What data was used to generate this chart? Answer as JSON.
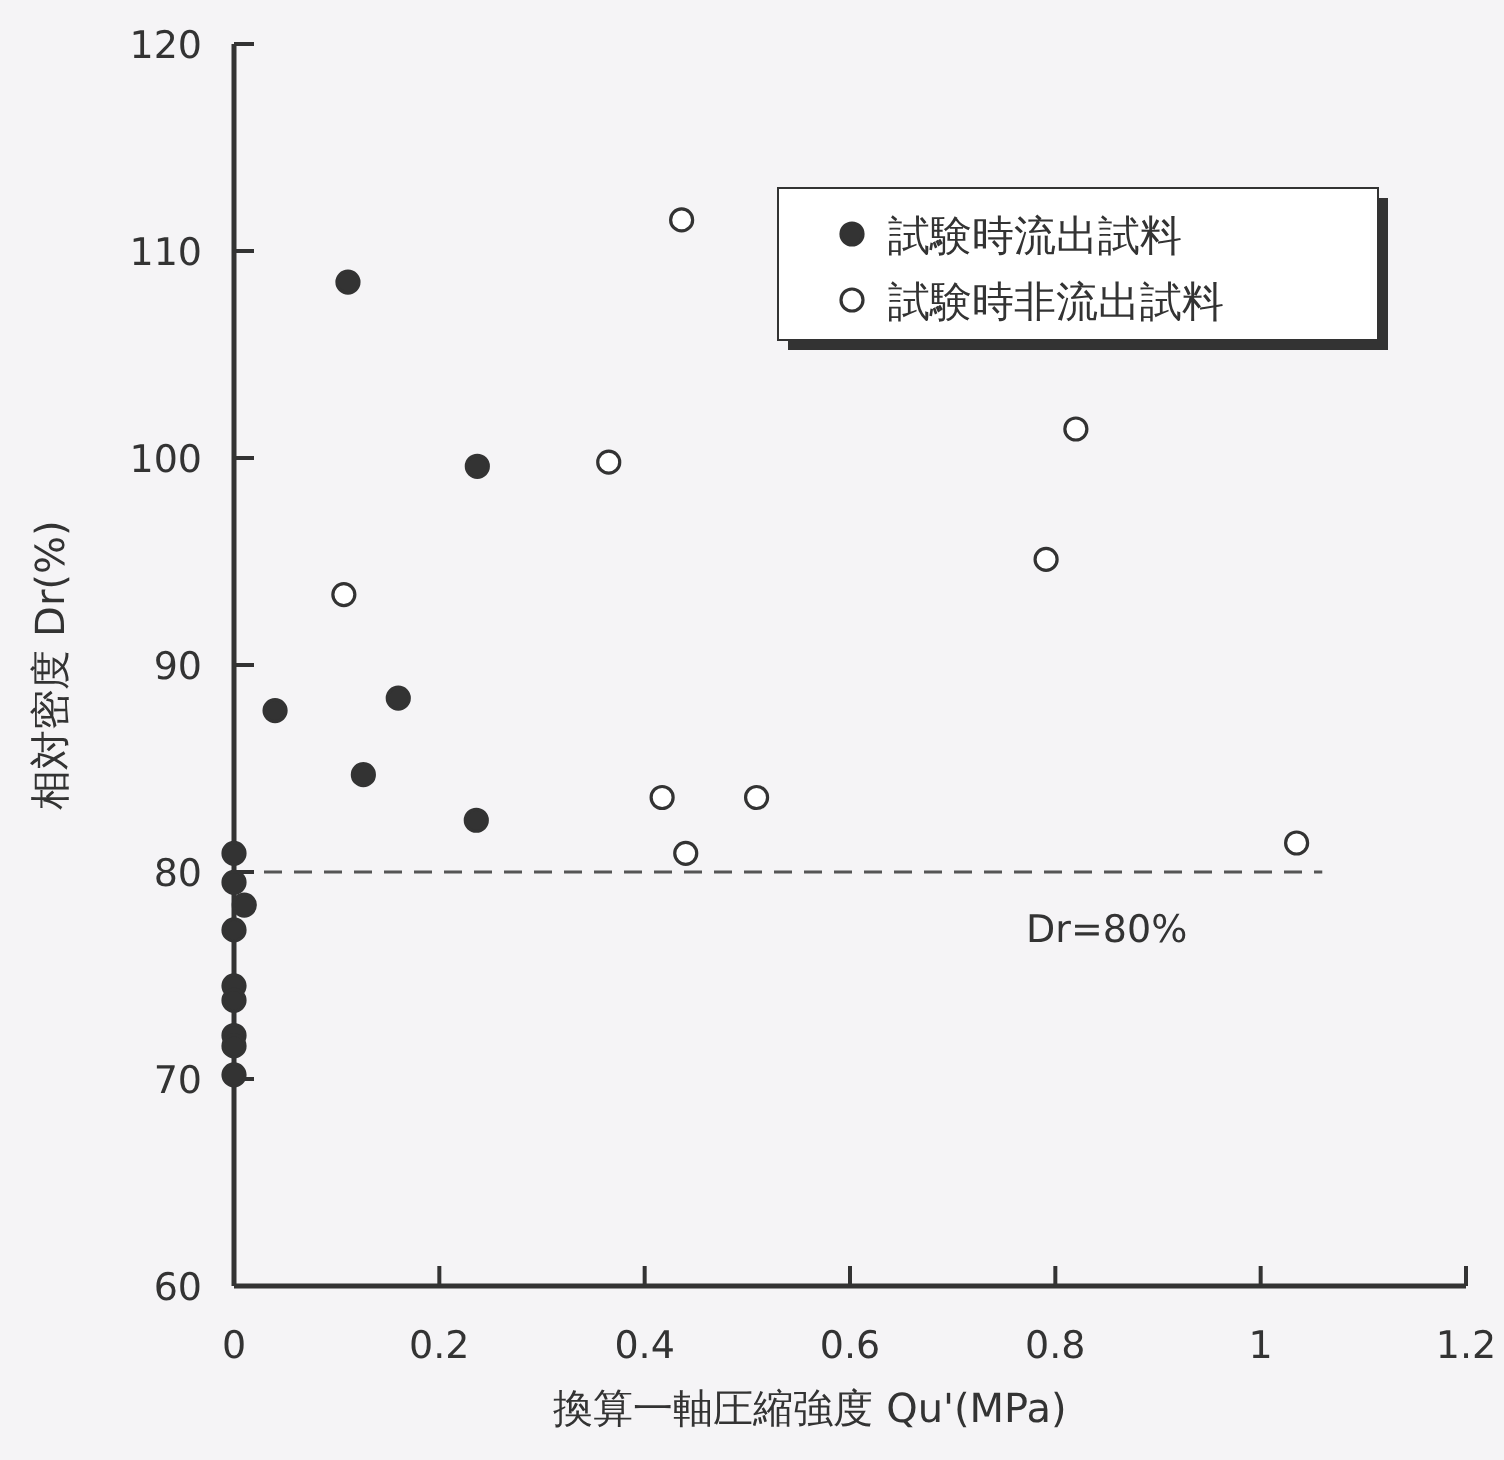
{
  "chart_data": {
    "type": "scatter",
    "xlabel": "換算一軸圧縮強度 Qu'(MPa)",
    "ylabel": "相対密度 Dr(%)",
    "xlim": [
      0,
      1.2
    ],
    "xticks": [
      0,
      0.2,
      0.4,
      0.6,
      0.8,
      1,
      1.2
    ],
    "ylim": [
      60,
      120
    ],
    "yticks": [
      60,
      70,
      80,
      90,
      100,
      110,
      120
    ],
    "marker": "circle",
    "legend": "top right",
    "grid": false,
    "series": [
      {
        "name": "試験時流出試料",
        "color": "#333333",
        "x": [
          0.111,
          0.237,
          0.04,
          0.16,
          0.126,
          0.236,
          0,
          0,
          0,
          0,
          0,
          0,
          0,
          0,
          0.01
        ],
        "values": [
          108.5,
          99.6,
          87.8,
          88.4,
          84.7,
          82.5,
          80.9,
          79.5,
          77.2,
          74.5,
          73.8,
          72.1,
          71.6,
          70.2,
          78.4
        ]
      },
      {
        "name": "試験時非流出試料",
        "color": "#ffffff",
        "x": [
          0.436,
          0.365,
          0.107,
          0.417,
          0.44,
          0.82,
          0.791,
          0.509,
          1.035
        ],
        "values": [
          111.5,
          99.8,
          93.4,
          83.6,
          80.9,
          101.4,
          95.1,
          83.6,
          81.4
        ]
      }
    ],
    "ref_lines": [
      {
        "axis": "y",
        "value": 80,
        "label": "Dr=80%",
        "line_style": "dashed",
        "color": "#555555"
      }
    ]
  }
}
